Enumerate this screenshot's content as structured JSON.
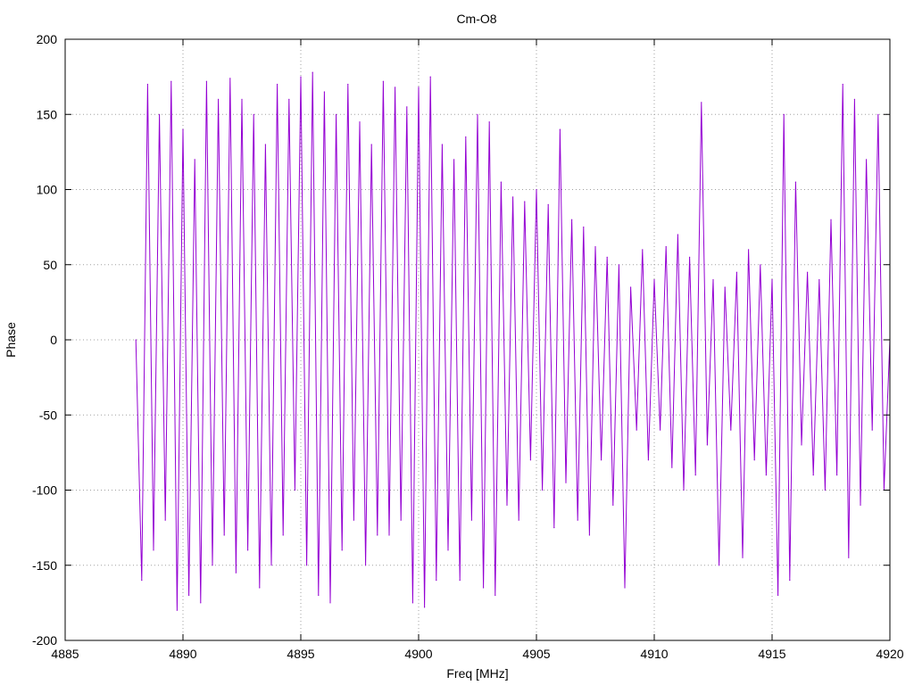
{
  "chart_data": {
    "type": "line",
    "title": "Cm-O8",
    "xlabel": "Freq [MHz]",
    "ylabel": "Phase",
    "xlim": [
      4885,
      4920
    ],
    "ylim": [
      -200,
      200
    ],
    "x_ticks": [
      4885,
      4890,
      4895,
      4900,
      4905,
      4910,
      4915,
      4920
    ],
    "y_ticks": [
      -200,
      -150,
      -100,
      -50,
      0,
      50,
      100,
      150,
      200
    ],
    "x_tick_labels": [
      "4885",
      "4890",
      "4895",
      "4900",
      "4905",
      "4910",
      "4915",
      "4920"
    ],
    "y_tick_labels": [
      "-200",
      "-150",
      "-100",
      "-50",
      "0",
      "50",
      "100",
      "150",
      "200"
    ],
    "grid": true,
    "legend": "none",
    "series": [
      {
        "color": "#9400d3",
        "x": [
          4888.0,
          4888.25,
          4888.5,
          4888.75,
          4889.0,
          4889.25,
          4889.5,
          4889.75,
          4890.0,
          4890.25,
          4890.5,
          4890.75,
          4891.0,
          4891.25,
          4891.5,
          4891.75,
          4892.0,
          4892.25,
          4892.5,
          4892.75,
          4893.0,
          4893.25,
          4893.5,
          4893.75,
          4894.0,
          4894.25,
          4894.5,
          4894.75,
          4895.0,
          4895.25,
          4895.5,
          4895.75,
          4896.0,
          4896.25,
          4896.5,
          4896.75,
          4897.0,
          4897.25,
          4897.5,
          4897.75,
          4898.0,
          4898.25,
          4898.5,
          4898.75,
          4899.0,
          4899.25,
          4899.5,
          4899.75,
          4900.0,
          4900.25,
          4900.5,
          4900.75,
          4901.0,
          4901.25,
          4901.5,
          4901.75,
          4902.0,
          4902.25,
          4902.5,
          4902.75,
          4903.0,
          4903.25,
          4903.5,
          4903.75,
          4904.0,
          4904.25,
          4904.5,
          4904.75,
          4905.0,
          4905.25,
          4905.5,
          4905.75,
          4906.0,
          4906.25,
          4906.5,
          4906.75,
          4907.0,
          4907.25,
          4907.5,
          4907.75,
          4908.0,
          4908.25,
          4908.5,
          4908.75,
          4909.0,
          4909.25,
          4909.5,
          4909.75,
          4910.0,
          4910.25,
          4910.5,
          4910.75,
          4911.0,
          4911.25,
          4911.5,
          4911.75,
          4912.0,
          4912.25,
          4912.5,
          4912.75,
          4913.0,
          4913.25,
          4913.5,
          4913.75,
          4914.0,
          4914.25,
          4914.5,
          4914.75,
          4915.0,
          4915.25,
          4915.5,
          4915.75,
          4916.0,
          4916.25,
          4916.5,
          4916.75,
          4917.0,
          4917.25,
          4917.5,
          4917.75,
          4918.0,
          4918.25,
          4918.5,
          4918.75,
          4919.0,
          4919.25,
          4919.5,
          4919.75,
          4920.0
        ],
        "y": [
          0,
          -160,
          170,
          -140,
          150,
          -120,
          172,
          -180,
          140,
          -170,
          120,
          -175,
          172,
          -150,
          160,
          -130,
          174,
          -155,
          160,
          -140,
          150,
          -165,
          130,
          -150,
          170,
          -130,
          160,
          -100,
          175,
          -150,
          178,
          -170,
          165,
          -175,
          150,
          -140,
          170,
          -120,
          145,
          -150,
          130,
          -130,
          172,
          -130,
          168,
          -120,
          155,
          -175,
          168,
          -178,
          175,
          -160,
          130,
          -140,
          120,
          -160,
          135,
          -120,
          150,
          -165,
          145,
          -170,
          105,
          -110,
          95,
          -120,
          92,
          -80,
          100,
          -100,
          90,
          -125,
          140,
          -95,
          80,
          -120,
          75,
          -130,
          62,
          -80,
          55,
          -110,
          50,
          -165,
          35,
          -60,
          60,
          -80,
          40,
          -60,
          62,
          -85,
          70,
          -100,
          55,
          -90,
          158,
          -70,
          40,
          -150,
          35,
          -60,
          45,
          -145,
          60,
          -80,
          50,
          -90,
          40,
          -170,
          150,
          -160,
          105,
          -70,
          45,
          -90,
          40,
          -100,
          80,
          -90,
          170,
          -145,
          160,
          -110,
          120,
          -60,
          150,
          -100,
          0
        ]
      }
    ]
  }
}
